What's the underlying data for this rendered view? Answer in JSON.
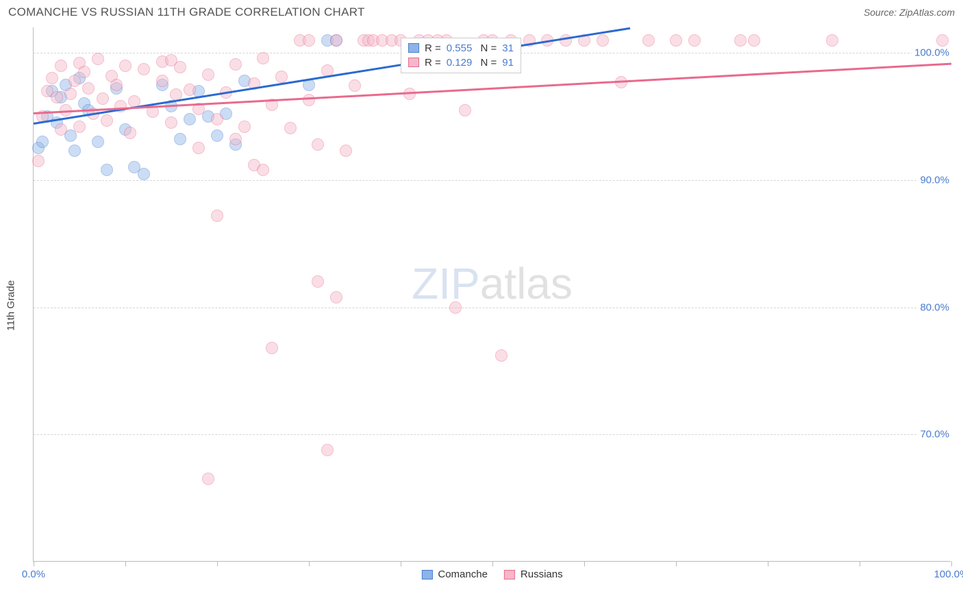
{
  "header": {
    "title": "COMANCHE VS RUSSIAN 11TH GRADE CORRELATION CHART",
    "source": "Source: ZipAtlas.com"
  },
  "ylabel": "11th Grade",
  "watermark": {
    "prefix": "ZIP",
    "suffix": "atlas"
  },
  "chart": {
    "type": "scatter",
    "background_color": "#ffffff",
    "grid_color": "#d5d5d5",
    "axis_color": "#bbbbbb",
    "tick_label_color": "#4a7bd0",
    "xlim": [
      0,
      100
    ],
    "ylim": [
      60,
      102
    ],
    "y_gridlines": [
      70,
      80,
      90,
      100
    ],
    "ytick_labels": [
      "70.0%",
      "80.0%",
      "90.0%",
      "100.0%"
    ],
    "x_ticks": [
      0,
      10,
      20,
      30,
      40,
      50,
      60,
      70,
      80,
      90,
      100
    ],
    "xtick_labels": {
      "0": "0.0%",
      "100": "100.0%"
    },
    "point_radius": 9,
    "point_opacity": 0.45,
    "series": [
      {
        "name": "Comanche",
        "color_fill": "#8db4e8",
        "color_stroke": "#4a7bd0",
        "R": "0.555",
        "N": "31",
        "trend": {
          "x1": 0,
          "y1": 94.5,
          "x2": 65,
          "y2": 102,
          "color": "#2b6ad0",
          "width": 2.5
        },
        "points": [
          [
            0.5,
            92.5
          ],
          [
            1,
            93
          ],
          [
            1.5,
            95
          ],
          [
            2,
            97
          ],
          [
            2.5,
            94.5
          ],
          [
            3,
            96.5
          ],
          [
            3.5,
            97.5
          ],
          [
            4,
            93.5
          ],
          [
            4.5,
            92.3
          ],
          [
            5,
            98
          ],
          [
            5.5,
            96
          ],
          [
            6,
            95.5
          ],
          [
            7,
            93
          ],
          [
            8,
            90.8
          ],
          [
            9,
            97.2
          ],
          [
            10,
            94
          ],
          [
            11,
            91
          ],
          [
            12,
            90.5
          ],
          [
            14,
            97.5
          ],
          [
            15,
            95.8
          ],
          [
            16,
            93.2
          ],
          [
            17,
            94.8
          ],
          [
            18,
            97
          ],
          [
            19,
            95
          ],
          [
            20,
            93.5
          ],
          [
            21,
            95.2
          ],
          [
            22,
            92.8
          ],
          [
            23,
            97.8
          ],
          [
            30,
            97.5
          ],
          [
            32,
            101
          ],
          [
            33,
            101
          ]
        ]
      },
      {
        "name": "Russians",
        "color_fill": "#f5b8c8",
        "color_stroke": "#e86a8e",
        "R": "0.129",
        "N": "91",
        "trend": {
          "x1": 0,
          "y1": 95.3,
          "x2": 100,
          "y2": 99.2,
          "color": "#e86a8e",
          "width": 2.5
        },
        "points": [
          [
            0.5,
            91.5
          ],
          [
            1,
            95
          ],
          [
            1.5,
            97
          ],
          [
            2,
            98
          ],
          [
            2.5,
            96.5
          ],
          [
            3,
            94
          ],
          [
            3,
            99
          ],
          [
            3.5,
            95.5
          ],
          [
            4,
            96.8
          ],
          [
            4.5,
            97.8
          ],
          [
            5,
            99.2
          ],
          [
            5,
            94.2
          ],
          [
            5.5,
            98.5
          ],
          [
            6,
            97.2
          ],
          [
            6.5,
            95.2
          ],
          [
            7,
            99.5
          ],
          [
            7.5,
            96.4
          ],
          [
            8,
            94.7
          ],
          [
            8.5,
            98.2
          ],
          [
            9,
            97.5
          ],
          [
            9.5,
            95.8
          ],
          [
            10,
            99
          ],
          [
            10.5,
            93.7
          ],
          [
            11,
            96.2
          ],
          [
            12,
            98.7
          ],
          [
            13,
            95.4
          ],
          [
            14,
            99.3
          ],
          [
            14,
            97.8
          ],
          [
            15,
            94.5
          ],
          [
            15,
            99.4
          ],
          [
            15.5,
            96.7
          ],
          [
            16,
            98.9
          ],
          [
            17,
            97.1
          ],
          [
            18,
            95.6
          ],
          [
            18,
            92.5
          ],
          [
            19,
            98.3
          ],
          [
            19,
            66.5
          ],
          [
            20,
            94.8
          ],
          [
            20,
            87.2
          ],
          [
            21,
            96.9
          ],
          [
            22,
            99.1
          ],
          [
            22,
            93.2
          ],
          [
            23,
            94.2
          ],
          [
            24,
            97.6
          ],
          [
            24,
            91.2
          ],
          [
            25,
            90.8
          ],
          [
            25,
            99.6
          ],
          [
            26,
            95.9
          ],
          [
            26,
            76.8
          ],
          [
            27,
            98.1
          ],
          [
            28,
            94.1
          ],
          [
            29,
            101
          ],
          [
            30,
            96.3
          ],
          [
            30,
            101
          ],
          [
            31,
            92.8
          ],
          [
            31,
            82
          ],
          [
            32,
            98.6
          ],
          [
            32,
            68.8
          ],
          [
            33,
            80.8
          ],
          [
            33,
            101
          ],
          [
            34,
            92.3
          ],
          [
            35,
            97.4
          ],
          [
            36,
            101
          ],
          [
            36.5,
            101
          ],
          [
            37,
            101
          ],
          [
            38,
            101
          ],
          [
            39,
            101
          ],
          [
            40,
            101
          ],
          [
            41,
            96.8
          ],
          [
            42,
            101
          ],
          [
            43,
            101
          ],
          [
            44,
            101
          ],
          [
            45,
            101
          ],
          [
            46,
            80
          ],
          [
            47,
            95.5
          ],
          [
            49,
            101
          ],
          [
            50,
            101
          ],
          [
            51,
            76.2
          ],
          [
            52,
            101
          ],
          [
            54,
            101
          ],
          [
            56,
            101
          ],
          [
            58,
            101
          ],
          [
            60,
            101
          ],
          [
            62,
            101
          ],
          [
            64,
            97.7
          ],
          [
            67,
            101
          ],
          [
            70,
            101
          ],
          [
            72,
            101
          ],
          [
            77,
            101
          ],
          [
            78.5,
            101
          ],
          [
            87,
            101
          ],
          [
            99,
            101
          ]
        ]
      }
    ]
  },
  "legend_bottom": [
    {
      "label": "Comanche",
      "fill": "#8db4e8",
      "stroke": "#4a7bd0"
    },
    {
      "label": "Russians",
      "fill": "#f5b8c8",
      "stroke": "#e86a8e"
    }
  ]
}
